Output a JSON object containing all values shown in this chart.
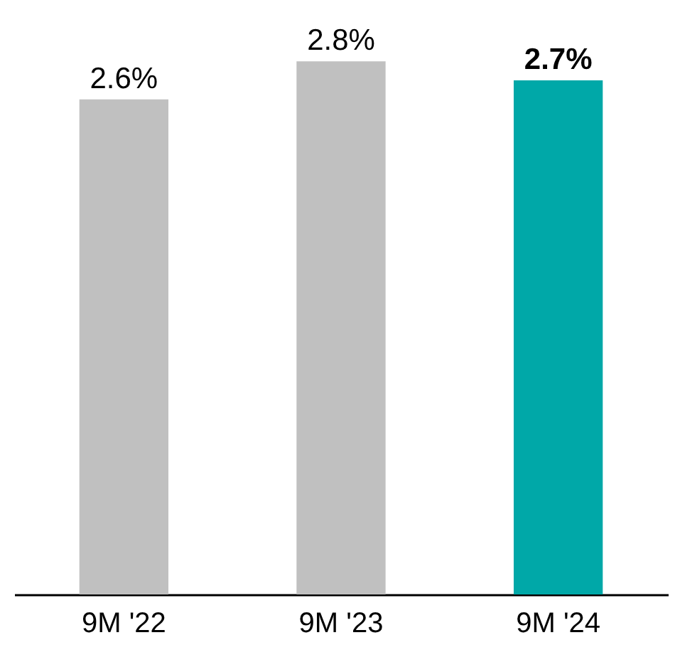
{
  "chart_data": {
    "type": "bar",
    "categories": [
      "9M '22",
      "9M '23",
      "9M '24"
    ],
    "values": [
      2.6,
      2.8,
      2.7
    ],
    "value_labels": [
      "2.6%",
      "2.8%",
      "2.7%"
    ],
    "colors": [
      "#c0c0c0",
      "#c0c0c0",
      "#00a8a8"
    ],
    "grid": false,
    "legend": false
  }
}
